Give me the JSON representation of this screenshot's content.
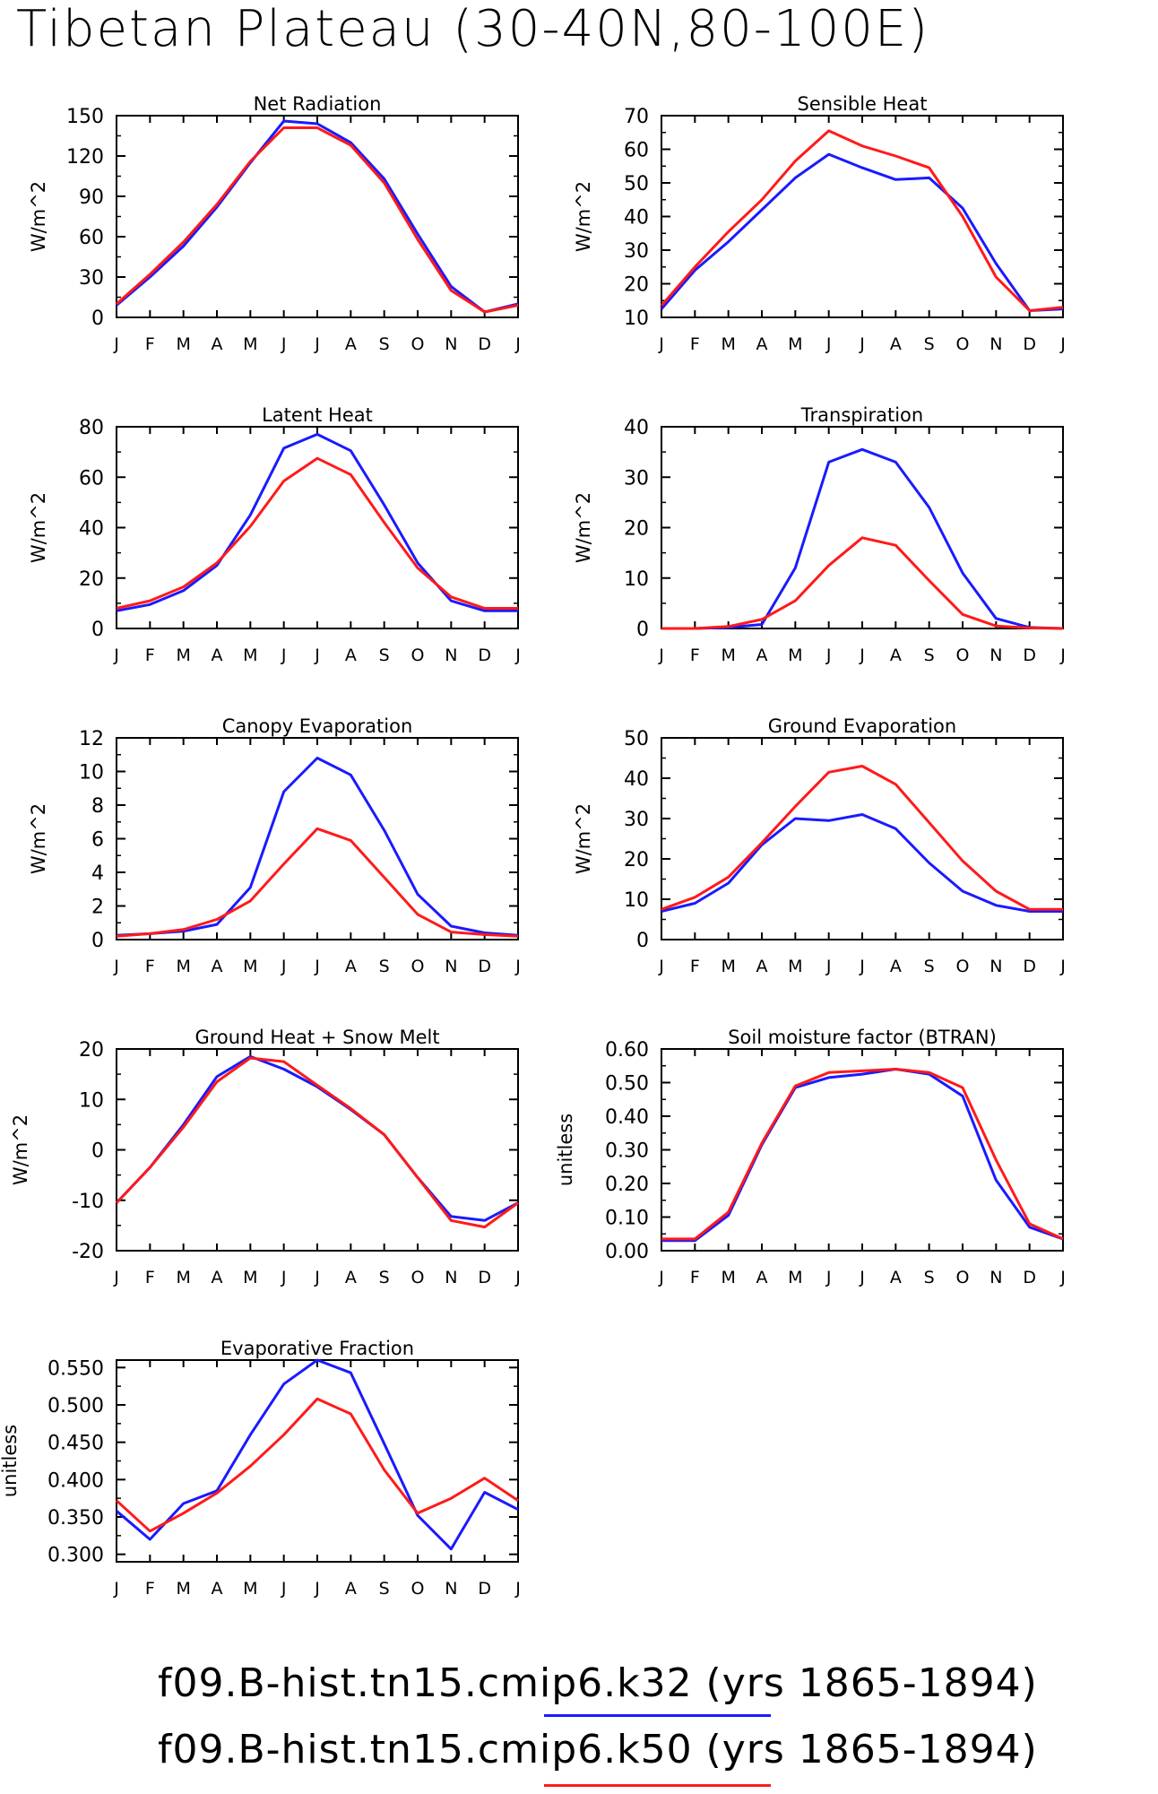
{
  "page_title": "Tibetan Plateau (30-40N,80-100E)",
  "month_labels": [
    "J",
    "F",
    "M",
    "A",
    "M",
    "J",
    "J",
    "A",
    "S",
    "O",
    "N",
    "D",
    "J"
  ],
  "legend": [
    {
      "label": "f09.B-hist.tn15.cmip6.k32 (yrs 1865-1894)",
      "color": "#1a1aff"
    },
    {
      "label": "f09.B-hist.tn15.cmip6.k50 (yrs 1865-1894)",
      "color": "#ff1a1a"
    }
  ],
  "chart_data": [
    {
      "type": "line",
      "title": "Net Radiation",
      "ylabel": "W/m^2",
      "ylim": [
        0,
        150
      ],
      "yticks": [
        "0",
        "30",
        "60",
        "90",
        "120",
        "150"
      ],
      "ytick_values": [
        0,
        30,
        60,
        90,
        120,
        150
      ],
      "series": [
        {
          "name": "f09.B-hist.tn15.cmip6.k32 (yrs 1865-1894)",
          "color": "#1a1aff",
          "values": [
            9,
            30,
            53,
            82,
            115,
            146,
            144,
            130,
            103,
            62,
            23,
            4,
            10
          ]
        },
        {
          "name": "f09.B-hist.tn15.cmip6.k50 (yrs 1865-1894)",
          "color": "#ff1a1a",
          "values": [
            10,
            32,
            56,
            84,
            116,
            141,
            141,
            128,
            100,
            58,
            20,
            4,
            9
          ]
        }
      ]
    },
    {
      "type": "line",
      "title": "Sensible Heat",
      "ylabel": "W/m^2",
      "ylim": [
        10,
        70
      ],
      "yticks": [
        "10",
        "20",
        "30",
        "40",
        "50",
        "60",
        "70"
      ],
      "ytick_values": [
        10,
        20,
        30,
        40,
        50,
        60,
        70
      ],
      "series": [
        {
          "name": "f09.B-hist.tn15.cmip6.k32 (yrs 1865-1894)",
          "color": "#1a1aff",
          "values": [
            12.5,
            24,
            32.5,
            42,
            51.5,
            58.5,
            54.5,
            51,
            51.5,
            42.5,
            26,
            12,
            12.5
          ]
        },
        {
          "name": "f09.B-hist.tn15.cmip6.k50 (yrs 1865-1894)",
          "color": "#ff1a1a",
          "values": [
            13.5,
            25,
            35.5,
            45,
            56.5,
            65.5,
            61,
            58,
            54.5,
            40,
            22,
            12,
            13
          ]
        }
      ]
    },
    {
      "type": "line",
      "title": "Latent Heat",
      "ylabel": "W/m^2",
      "ylim": [
        0,
        80
      ],
      "yticks": [
        "0",
        "20",
        "40",
        "60",
        "80"
      ],
      "ytick_values": [
        0,
        20,
        40,
        60,
        80
      ],
      "series": [
        {
          "name": "f09.B-hist.tn15.cmip6.k32 (yrs 1865-1894)",
          "color": "#1a1aff",
          "values": [
            7,
            9.5,
            15,
            25,
            45,
            71.5,
            77,
            70.5,
            49,
            26,
            11,
            7,
            7
          ]
        },
        {
          "name": "f09.B-hist.tn15.cmip6.k50 (yrs 1865-1894)",
          "color": "#ff1a1a",
          "values": [
            8,
            11,
            16.5,
            26,
            40.5,
            58.5,
            67.5,
            61,
            42,
            24,
            12.5,
            8,
            8
          ]
        }
      ]
    },
    {
      "type": "line",
      "title": "Transpiration",
      "ylabel": "W/m^2",
      "ylim": [
        0,
        40
      ],
      "yticks": [
        "0",
        "10",
        "20",
        "30",
        "40"
      ],
      "ytick_values": [
        0,
        10,
        20,
        30,
        40
      ],
      "series": [
        {
          "name": "f09.B-hist.tn15.cmip6.k32 (yrs 1865-1894)",
          "color": "#1a1aff",
          "values": [
            0,
            0,
            0.2,
            0.8,
            12,
            33,
            35.5,
            33,
            24,
            11,
            2,
            0.2,
            0
          ]
        },
        {
          "name": "f09.B-hist.tn15.cmip6.k50 (yrs 1865-1894)",
          "color": "#ff1a1a",
          "values": [
            0,
            0,
            0.4,
            1.8,
            5.5,
            12.5,
            18,
            16.5,
            9.5,
            2.8,
            0.5,
            0.1,
            0
          ]
        }
      ]
    },
    {
      "type": "line",
      "title": "Canopy Evaporation",
      "ylabel": "W/m^2",
      "ylim": [
        0,
        12
      ],
      "yticks": [
        "0",
        "2",
        "4",
        "6",
        "8",
        "10",
        "12"
      ],
      "ytick_values": [
        0,
        2,
        4,
        6,
        8,
        10,
        12
      ],
      "series": [
        {
          "name": "f09.B-hist.tn15.cmip6.k32 (yrs 1865-1894)",
          "color": "#1a1aff",
          "values": [
            0.25,
            0.35,
            0.5,
            0.9,
            3.1,
            8.8,
            10.8,
            9.8,
            6.5,
            2.7,
            0.8,
            0.4,
            0.25
          ]
        },
        {
          "name": "f09.B-hist.tn15.cmip6.k50 (yrs 1865-1894)",
          "color": "#ff1a1a",
          "values": [
            0.2,
            0.35,
            0.6,
            1.2,
            2.3,
            4.5,
            6.6,
            5.9,
            3.7,
            1.5,
            0.45,
            0.3,
            0.2
          ]
        }
      ]
    },
    {
      "type": "line",
      "title": "Ground Evaporation",
      "ylabel": "W/m^2",
      "ylim": [
        0,
        50
      ],
      "yticks": [
        "0",
        "10",
        "20",
        "30",
        "40",
        "50"
      ],
      "ytick_values": [
        0,
        10,
        20,
        30,
        40,
        50
      ],
      "series": [
        {
          "name": "f09.B-hist.tn15.cmip6.k32 (yrs 1865-1894)",
          "color": "#1a1aff",
          "values": [
            7,
            9,
            14,
            23.5,
            30,
            29.5,
            31,
            27.5,
            19,
            12,
            8.5,
            7,
            7
          ]
        },
        {
          "name": "f09.B-hist.tn15.cmip6.k50 (yrs 1865-1894)",
          "color": "#ff1a1a",
          "values": [
            7.5,
            10.5,
            15.5,
            24,
            33,
            41.5,
            43,
            38.5,
            29,
            19.5,
            12,
            7.5,
            7.5
          ]
        }
      ]
    },
    {
      "type": "line",
      "title": "Ground Heat + Snow Melt",
      "ylabel": "W/m^2",
      "ylim": [
        -20,
        20
      ],
      "yticks": [
        "-20",
        "-10",
        "0",
        "10",
        "20"
      ],
      "ytick_values": [
        -20,
        -10,
        0,
        10,
        20
      ],
      "series": [
        {
          "name": "f09.B-hist.tn15.cmip6.k32 (yrs 1865-1894)",
          "color": "#1a1aff",
          "values": [
            -10.5,
            -3.5,
            5,
            14.5,
            18.5,
            16,
            12.5,
            8,
            3,
            -5.5,
            -13.2,
            -14,
            -10.5
          ]
        },
        {
          "name": "f09.B-hist.tn15.cmip6.k50 (yrs 1865-1894)",
          "color": "#ff1a1a",
          "values": [
            -10.5,
            -3.5,
            4.5,
            13.5,
            18.2,
            17.5,
            12.8,
            8.2,
            3,
            -5.5,
            -14,
            -15.3,
            -10.5
          ]
        }
      ]
    },
    {
      "type": "line",
      "title": "Soil moisture factor (BTRAN)",
      "ylabel": "unitless",
      "ylim": [
        0,
        0.6
      ],
      "yticks": [
        "0.00",
        "0.10",
        "0.20",
        "0.30",
        "0.40",
        "0.50",
        "0.60"
      ],
      "ytick_values": [
        0,
        0.1,
        0.2,
        0.3,
        0.4,
        0.5,
        0.6
      ],
      "series": [
        {
          "name": "f09.B-hist.tn15.cmip6.k32 (yrs 1865-1894)",
          "color": "#1a1aff",
          "values": [
            0.03,
            0.03,
            0.105,
            0.315,
            0.485,
            0.515,
            0.525,
            0.54,
            0.525,
            0.46,
            0.21,
            0.07,
            0.035
          ]
        },
        {
          "name": "f09.B-hist.tn15.cmip6.k50 (yrs 1865-1894)",
          "color": "#ff1a1a",
          "values": [
            0.035,
            0.035,
            0.115,
            0.32,
            0.49,
            0.53,
            0.535,
            0.54,
            0.53,
            0.485,
            0.27,
            0.08,
            0.035
          ]
        }
      ]
    },
    {
      "type": "line",
      "title": "Evaporative Fraction",
      "ylabel": "unitless",
      "ylim": [
        0.29,
        0.56
      ],
      "yticks": [
        "0.300",
        "0.350",
        "0.400",
        "0.450",
        "0.500",
        "0.550"
      ],
      "ytick_values": [
        0.3,
        0.35,
        0.4,
        0.45,
        0.5,
        0.55
      ],
      "series": [
        {
          "name": "f09.B-hist.tn15.cmip6.k32 (yrs 1865-1894)",
          "color": "#1a1aff",
          "values": [
            0.358,
            0.32,
            0.368,
            0.385,
            0.46,
            0.528,
            0.56,
            0.543,
            0.448,
            0.352,
            0.307,
            0.383,
            0.36
          ]
        },
        {
          "name": "f09.B-hist.tn15.cmip6.k50 (yrs 1865-1894)",
          "color": "#ff1a1a",
          "values": [
            0.372,
            0.331,
            0.355,
            0.382,
            0.418,
            0.46,
            0.508,
            0.488,
            0.413,
            0.355,
            0.375,
            0.402,
            0.372
          ]
        }
      ]
    }
  ]
}
